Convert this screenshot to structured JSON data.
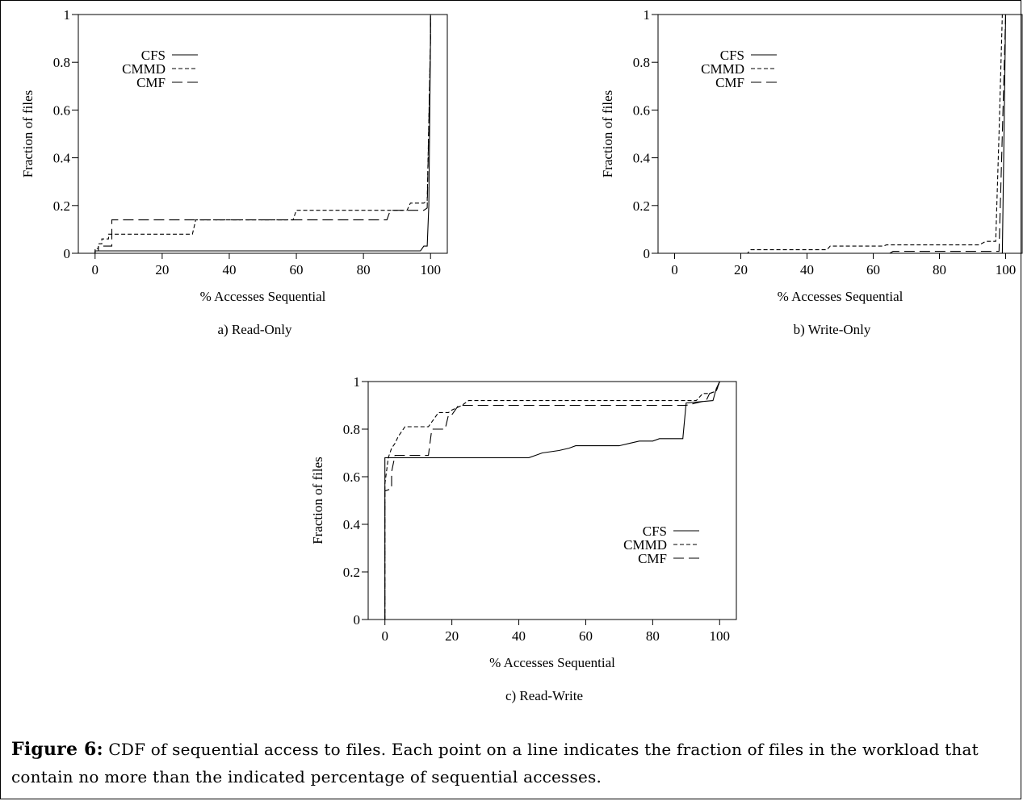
{
  "caption": {
    "label": "Figure 6:",
    "text": "CDF of sequential access to files. Each point on a line indicates the fraction of files in the workload that contain no more than the indicated percentage of sequential accesses."
  },
  "chart_data": [
    {
      "type": "line",
      "subtitle": "a) Read-Only",
      "xlabel": "% Accesses Sequential",
      "ylabel": "Fraction of files",
      "xlim": [
        -5,
        105
      ],
      "ylim": [
        0,
        1
      ],
      "xticks": [
        "0",
        "20",
        "40",
        "60",
        "80",
        "100"
      ],
      "yticks": [
        "0",
        "0.2",
        "0.4",
        "0.6",
        "0.8",
        "1"
      ],
      "legend_position": "top-left",
      "series": [
        {
          "name": "CFS",
          "style": "solid",
          "x": [
            0,
            0,
            97,
            98,
            99,
            99.5,
            100,
            100
          ],
          "y": [
            0,
            0.01,
            0.01,
            0.03,
            0.03,
            0.2,
            0.9,
            1
          ]
        },
        {
          "name": "CMMD",
          "style": "short-dash",
          "x": [
            0,
            0,
            1,
            1,
            2,
            2,
            4,
            4,
            29,
            30,
            59,
            60,
            93,
            94,
            97,
            98,
            99,
            100,
            100
          ],
          "y": [
            0,
            0.02,
            0.02,
            0.04,
            0.04,
            0.06,
            0.06,
            0.08,
            0.08,
            0.14,
            0.14,
            0.18,
            0.18,
            0.21,
            0.21,
            0.21,
            0.22,
            0.9,
            1
          ]
        },
        {
          "name": "CMF",
          "style": "long-dash",
          "x": [
            0,
            0,
            1,
            1,
            5,
            5,
            87,
            88,
            98,
            99,
            100,
            100
          ],
          "y": [
            0,
            0.01,
            0.01,
            0.03,
            0.03,
            0.14,
            0.14,
            0.18,
            0.18,
            0.19,
            0.9,
            1
          ]
        }
      ]
    },
    {
      "type": "line",
      "subtitle": "b) Write-Only",
      "xlabel": "% Accesses Sequential",
      "ylabel": "Fraction of files",
      "xlim": [
        -5,
        105
      ],
      "ylim": [
        0,
        1
      ],
      "xticks": [
        "0",
        "20",
        "40",
        "60",
        "80",
        "100"
      ],
      "yticks": [
        "0",
        "0.2",
        "0.4",
        "0.6",
        "0.8",
        "1"
      ],
      "legend_position": "top-left",
      "series": [
        {
          "name": "CFS",
          "style": "solid",
          "x": [
            0,
            98,
            99,
            99.5,
            100,
            100
          ],
          "y": [
            0,
            0,
            0,
            0.5,
            1,
            1
          ]
        },
        {
          "name": "CMMD",
          "style": "short-dash",
          "x": [
            0,
            22,
            23,
            46,
            47,
            63,
            64,
            92,
            94,
            97,
            98,
            99,
            100
          ],
          "y": [
            0,
            0,
            0.015,
            0.015,
            0.03,
            0.03,
            0.035,
            0.035,
            0.05,
            0.05,
            0.5,
            1,
            1
          ]
        },
        {
          "name": "CMF",
          "style": "long-dash",
          "x": [
            0,
            65,
            66,
            98,
            99,
            100
          ],
          "y": [
            0,
            0,
            0.008,
            0.008,
            0.5,
            1
          ]
        }
      ]
    },
    {
      "type": "line",
      "subtitle": "c) Read-Write",
      "xlabel": "% Accesses Sequential",
      "ylabel": "Fraction of files",
      "xlim": [
        -5,
        105
      ],
      "ylim": [
        0,
        1
      ],
      "xticks": [
        "0",
        "20",
        "40",
        "60",
        "80",
        "100"
      ],
      "yticks": [
        "0",
        "0.2",
        "0.4",
        "0.6",
        "0.8",
        "1"
      ],
      "legend_position": "right",
      "series": [
        {
          "name": "CFS",
          "style": "solid",
          "x": [
            0,
            0,
            43,
            45,
            47,
            52,
            55,
            57,
            60,
            64,
            70,
            73,
            76,
            80,
            82,
            89,
            90,
            98,
            99,
            100
          ],
          "y": [
            0,
            0.68,
            0.68,
            0.69,
            0.7,
            0.71,
            0.72,
            0.73,
            0.73,
            0.73,
            0.73,
            0.74,
            0.75,
            0.75,
            0.76,
            0.76,
            0.91,
            0.92,
            0.97,
            1
          ]
        },
        {
          "name": "CMMD",
          "style": "short-dash",
          "x": [
            0,
            0,
            1,
            2,
            3,
            4,
            5,
            6,
            13,
            16,
            19,
            20,
            23,
            25,
            80,
            93,
            95,
            97,
            99,
            100
          ],
          "y": [
            0,
            0.57,
            0.68,
            0.72,
            0.74,
            0.77,
            0.79,
            0.81,
            0.81,
            0.87,
            0.87,
            0.88,
            0.9,
            0.92,
            0.92,
            0.92,
            0.95,
            0.95,
            0.96,
            1
          ]
        },
        {
          "name": "CMF",
          "style": "long-dash",
          "x": [
            0,
            0,
            2,
            2,
            3,
            13,
            14,
            18,
            19,
            20,
            22,
            23,
            90,
            93,
            96,
            97,
            99,
            100
          ],
          "y": [
            0,
            0.54,
            0.55,
            0.62,
            0.69,
            0.69,
            0.8,
            0.8,
            0.86,
            0.86,
            0.9,
            0.9,
            0.9,
            0.91,
            0.92,
            0.95,
            0.96,
            1
          ]
        }
      ]
    }
  ]
}
